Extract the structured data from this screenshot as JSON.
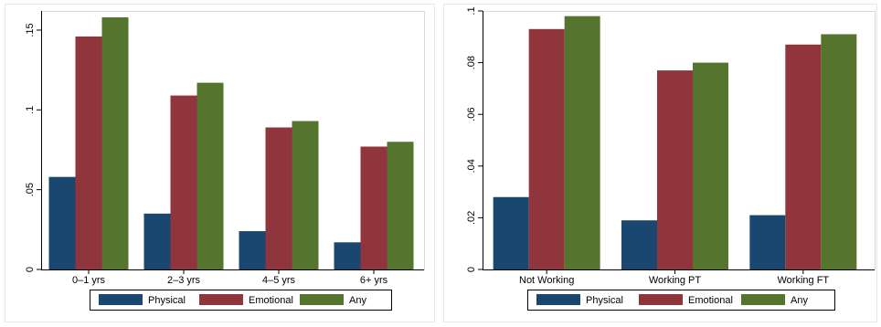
{
  "chart_data": [
    {
      "type": "bar",
      "categories": [
        "0–1 yrs",
        "2–3 yrs",
        "4–5 yrs",
        "6+ yrs"
      ],
      "series": [
        {
          "name": "Physical",
          "values": [
            0.058,
            0.035,
            0.024,
            0.017
          ]
        },
        {
          "name": "Emotional",
          "values": [
            0.146,
            0.109,
            0.089,
            0.077
          ]
        },
        {
          "name": "Any",
          "values": [
            0.158,
            0.117,
            0.093,
            0.08
          ]
        }
      ],
      "yticks": [
        0,
        0.05,
        0.1,
        0.15
      ],
      "ytick_labels": [
        "0",
        ".05",
        ".1",
        ".15"
      ],
      "ylim": [
        0,
        0.162
      ],
      "grid": false,
      "legend": "bottom",
      "xlabel": "",
      "ylabel": ""
    },
    {
      "type": "bar",
      "categories": [
        "Not Working",
        "Working PT",
        "Working FT"
      ],
      "series": [
        {
          "name": "Physical",
          "values": [
            0.028,
            0.019,
            0.021
          ]
        },
        {
          "name": "Emotional",
          "values": [
            0.093,
            0.077,
            0.087
          ]
        },
        {
          "name": "Any",
          "values": [
            0.098,
            0.08,
            0.091
          ]
        }
      ],
      "yticks": [
        0,
        0.02,
        0.04,
        0.06,
        0.08,
        0.1
      ],
      "ytick_labels": [
        "0",
        ".02",
        ".04",
        ".06",
        ".08",
        ".1"
      ],
      "ylim": [
        0,
        0.1
      ],
      "grid": false,
      "legend": "bottom",
      "xlabel": "",
      "ylabel": ""
    }
  ],
  "colors": {
    "Physical": "#1a476f",
    "Emotional": "#90353b",
    "Any": "#55752f"
  }
}
